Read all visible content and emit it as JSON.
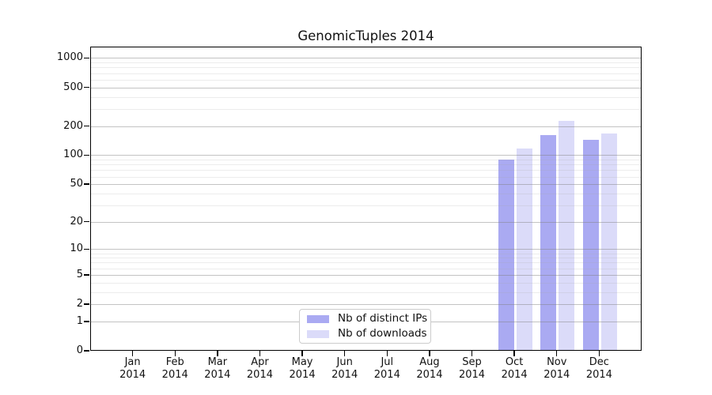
{
  "chart_data": {
    "type": "bar",
    "title": "GenomicTuples 2014",
    "y_scale": "log1p",
    "xlabel": "",
    "ylabel": "",
    "ylim": [
      0,
      1300
    ],
    "grid": true,
    "legend_position": "lower center",
    "categories": [
      "Jan 2014",
      "Feb 2014",
      "Mar 2014",
      "Apr 2014",
      "May 2014",
      "Jun 2014",
      "Jul 2014",
      "Aug 2014",
      "Sep 2014",
      "Oct 2014",
      "Nov 2014",
      "Dec 2014"
    ],
    "y_ticks": [
      0,
      1,
      2,
      5,
      10,
      20,
      50,
      100,
      200,
      500,
      1000
    ],
    "series": [
      {
        "name": "Nb of distinct IPs",
        "color": "#aaaaf2",
        "values": [
          0,
          0,
          0,
          0,
          0,
          0,
          0,
          0,
          0,
          88,
          158,
          141
        ]
      },
      {
        "name": "Nb of downloads",
        "color": "#dbdbf9",
        "values": [
          0,
          0,
          0,
          0,
          0,
          0,
          0,
          0,
          0,
          116,
          223,
          166
        ]
      }
    ]
  }
}
